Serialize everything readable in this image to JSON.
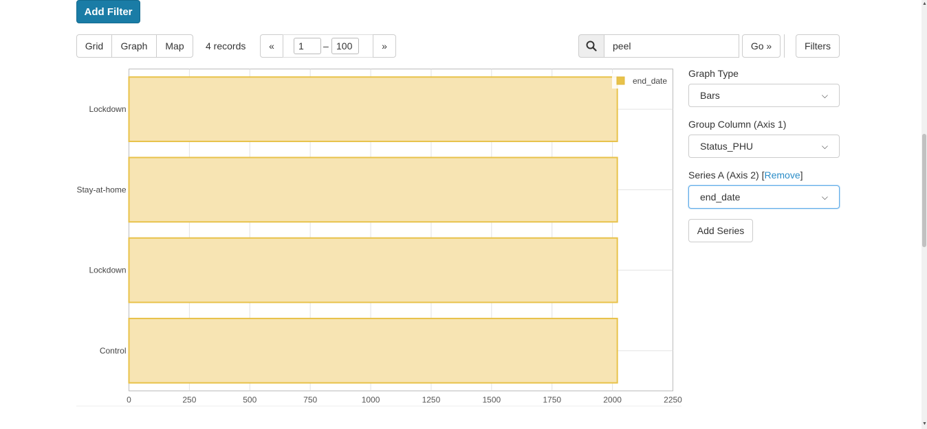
{
  "toolbar": {
    "add_filter": "Add Filter",
    "views": [
      "Grid",
      "Graph",
      "Map"
    ],
    "records": "4 records",
    "pager_prev": "«",
    "pager_next": "»",
    "pager_from": "1",
    "pager_dash": "–",
    "pager_to": "100",
    "search_value": "peel",
    "go": "Go »",
    "filters": "Filters"
  },
  "chart_data": {
    "type": "bar",
    "orientation": "horizontal",
    "categories": [
      "Lockdown",
      "Stay-at-home",
      "Lockdown",
      "Control"
    ],
    "series": [
      {
        "name": "end_date",
        "values": [
          2020,
          2020,
          2020,
          2020
        ]
      }
    ],
    "xlim": [
      0,
      2250
    ],
    "x_ticks": [
      "0",
      "250",
      "500",
      "750",
      "1000",
      "1250",
      "1500",
      "1750",
      "2000",
      "2250"
    ],
    "grid": true,
    "legend_position": "top-right",
    "bar_fill": "#f7e4b3",
    "bar_stroke": "#e8c24a"
  },
  "panel": {
    "graph_type_label": "Graph Type",
    "graph_type_value": "Bars",
    "group_label": "Group Column (Axis 1)",
    "group_value": "Status_PHU",
    "series_label": "Series A (Axis 2) [",
    "remove": "Remove",
    "series_label_end": "]",
    "series_value": "end_date",
    "add_series": "Add Series"
  }
}
